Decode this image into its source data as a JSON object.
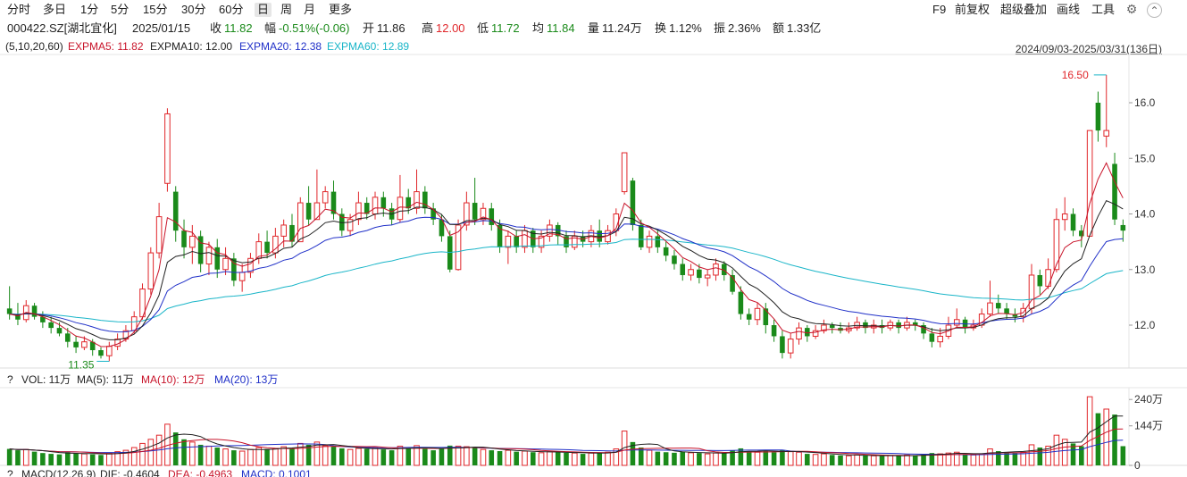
{
  "toolbar": {
    "periods": [
      "分时",
      "多日",
      "1分",
      "5分",
      "15分",
      "30分",
      "60分",
      "日",
      "周",
      "月",
      "更多"
    ],
    "active_period": "日",
    "right": [
      "F9",
      "前复权",
      "超级叠加",
      "画线",
      "工具"
    ]
  },
  "quote": {
    "code": "000422.SZ[湖北宜化]",
    "date": "2025/01/15",
    "close_label": "收",
    "close": "11.82",
    "change_label": "幅",
    "change": "-0.51%(-0.06)",
    "open_label": "开",
    "open": "11.86",
    "high_label": "高",
    "high": "12.00",
    "low_label": "低",
    "low": "11.72",
    "avg_label": "均",
    "avg": "11.84",
    "volume_label": "量",
    "volume": "11.24万",
    "turnover_label": "换",
    "turnover": "1.12%",
    "amplitude_label": "振",
    "amplitude": "2.36%",
    "amount_label": "额",
    "amount": "1.33亿"
  },
  "ma_legend": {
    "params": "(5,10,20,60)",
    "ma5": "EXPMA5: 11.82",
    "ma10": "EXPMA10: 12.00",
    "ma20": "EXPMA20: 12.38",
    "ma60": "EXPMA60: 12.89"
  },
  "range_label": "2024/09/03-2025/03/31(136日)",
  "vol_legend": {
    "help": "?",
    "vol": "VOL: 11万",
    "ma5": "MA(5): 11万",
    "ma10": "MA(10): 12万",
    "ma20": "MA(20): 13万"
  },
  "macd_legend": {
    "help": "?",
    "macd": "MACD(12,26,9)",
    "dif": "DIF: -0.4604",
    "dea": "DEA: -0.4963",
    "macd_val": "MACD: 0.1001"
  },
  "colors": {
    "up": "#e0262a",
    "down": "#1a8a1a",
    "ma5": "#c8142a",
    "ma10": "#222222",
    "ma20": "#2030c8",
    "ma60": "#19b5c8"
  },
  "chart_data": {
    "type": "candlestick",
    "price_axis": {
      "ticks": [
        "12.0",
        "13.0",
        "14.0",
        "15.0",
        "16.0"
      ],
      "min": 11.0,
      "max": 17.0
    },
    "volume_axis": {
      "ticks": [
        "0",
        "144万",
        "240万"
      ],
      "max": 270
    },
    "annotations": {
      "high": "16.50",
      "low": "11.35"
    },
    "candles": [
      [
        12.3,
        12.2,
        12.7,
        12.1,
        60
      ],
      [
        12.2,
        12.1,
        12.4,
        12.0,
        55
      ],
      [
        12.1,
        12.35,
        12.45,
        12.05,
        58
      ],
      [
        12.35,
        12.15,
        12.4,
        12.1,
        50
      ],
      [
        12.15,
        12.05,
        12.25,
        11.95,
        45
      ],
      [
        12.05,
        11.95,
        12.15,
        11.85,
        42
      ],
      [
        11.95,
        11.85,
        12.05,
        11.8,
        40
      ],
      [
        11.85,
        11.7,
        11.95,
        11.6,
        48
      ],
      [
        11.7,
        11.6,
        11.8,
        11.5,
        44
      ],
      [
        11.6,
        11.7,
        11.8,
        11.55,
        42
      ],
      [
        11.7,
        11.55,
        11.75,
        11.45,
        40
      ],
      [
        11.55,
        11.45,
        11.6,
        11.4,
        38
      ],
      [
        11.45,
        11.62,
        11.7,
        11.35,
        45
      ],
      [
        11.62,
        11.75,
        11.85,
        11.55,
        50
      ],
      [
        11.75,
        11.9,
        12.0,
        11.7,
        55
      ],
      [
        11.9,
        12.15,
        12.25,
        11.85,
        65
      ],
      [
        12.15,
        12.65,
        12.75,
        12.1,
        80
      ],
      [
        12.65,
        13.3,
        13.4,
        12.55,
        95
      ],
      [
        13.3,
        13.95,
        14.2,
        13.2,
        110
      ],
      [
        14.55,
        15.8,
        15.9,
        14.4,
        150
      ],
      [
        14.4,
        13.7,
        14.5,
        13.5,
        120
      ],
      [
        13.7,
        13.4,
        13.9,
        13.2,
        95
      ],
      [
        13.4,
        13.6,
        13.8,
        13.1,
        85
      ],
      [
        13.6,
        13.1,
        13.7,
        12.95,
        75
      ],
      [
        13.1,
        13.4,
        13.5,
        12.9,
        70
      ],
      [
        13.4,
        13.0,
        13.55,
        12.85,
        65
      ],
      [
        13.0,
        13.2,
        13.4,
        12.9,
        60
      ],
      [
        13.2,
        12.8,
        13.3,
        12.7,
        55
      ],
      [
        12.8,
        12.95,
        13.1,
        12.6,
        52
      ],
      [
        12.95,
        13.2,
        13.3,
        12.85,
        58
      ],
      [
        13.2,
        13.5,
        13.65,
        13.1,
        65
      ],
      [
        13.5,
        13.3,
        13.7,
        13.2,
        60
      ],
      [
        13.3,
        13.6,
        13.75,
        13.2,
        62
      ],
      [
        13.6,
        13.8,
        13.9,
        13.4,
        68
      ],
      [
        13.8,
        13.5,
        14.0,
        13.4,
        62
      ],
      [
        13.5,
        14.2,
        14.3,
        13.5,
        80
      ],
      [
        14.2,
        13.9,
        14.5,
        13.8,
        75
      ],
      [
        13.9,
        14.2,
        14.8,
        13.9,
        85
      ],
      [
        14.2,
        14.4,
        14.5,
        14.1,
        72
      ],
      [
        14.4,
        14.0,
        14.6,
        13.9,
        68
      ],
      [
        14.0,
        13.7,
        14.1,
        13.6,
        62
      ],
      [
        13.7,
        13.9,
        14.0,
        13.6,
        58
      ],
      [
        13.9,
        14.2,
        14.4,
        13.8,
        62
      ],
      [
        14.2,
        14.0,
        14.3,
        13.9,
        60
      ],
      [
        14.0,
        14.3,
        14.4,
        13.9,
        64
      ],
      [
        14.3,
        14.1,
        14.4,
        13.95,
        58
      ],
      [
        14.1,
        13.9,
        14.2,
        13.8,
        55
      ],
      [
        13.9,
        14.3,
        14.7,
        13.85,
        70
      ],
      [
        14.3,
        14.1,
        14.45,
        14.0,
        62
      ],
      [
        14.1,
        14.4,
        14.8,
        14.0,
        72
      ],
      [
        14.4,
        14.1,
        14.5,
        14.0,
        60
      ],
      [
        14.1,
        13.9,
        14.2,
        13.8,
        55
      ],
      [
        13.9,
        13.6,
        14.0,
        13.5,
        60
      ],
      [
        13.6,
        13.0,
        13.7,
        12.95,
        72
      ],
      [
        13.0,
        13.8,
        13.9,
        12.98,
        70
      ],
      [
        13.8,
        14.2,
        14.4,
        13.7,
        68
      ],
      [
        14.2,
        13.9,
        14.65,
        13.8,
        64
      ],
      [
        13.9,
        14.1,
        14.2,
        13.8,
        58
      ],
      [
        14.1,
        13.8,
        14.2,
        13.7,
        55
      ],
      [
        13.8,
        13.4,
        13.9,
        13.3,
        52
      ],
      [
        13.4,
        13.6,
        13.7,
        13.1,
        55
      ],
      [
        13.6,
        13.4,
        13.7,
        13.3,
        50
      ],
      [
        13.4,
        13.7,
        13.8,
        13.3,
        52
      ],
      [
        13.7,
        13.4,
        13.75,
        13.3,
        48
      ],
      [
        13.4,
        13.6,
        13.7,
        13.3,
        46
      ],
      [
        13.6,
        13.8,
        13.9,
        13.5,
        50
      ],
      [
        13.8,
        13.6,
        13.85,
        13.45,
        48
      ],
      [
        13.6,
        13.4,
        13.7,
        13.3,
        46
      ],
      [
        13.4,
        13.6,
        13.7,
        13.35,
        45
      ],
      [
        13.6,
        13.5,
        13.7,
        13.4,
        42
      ],
      [
        13.5,
        13.7,
        13.8,
        13.4,
        45
      ],
      [
        13.7,
        13.5,
        13.9,
        13.4,
        46
      ],
      [
        13.5,
        13.7,
        13.8,
        13.45,
        48
      ],
      [
        13.7,
        14.0,
        14.1,
        13.6,
        60
      ],
      [
        14.4,
        15.1,
        15.1,
        14.35,
        125
      ],
      [
        14.6,
        13.8,
        14.65,
        13.7,
        85
      ],
      [
        13.8,
        13.4,
        13.9,
        13.35,
        65
      ],
      [
        13.4,
        13.6,
        13.7,
        13.3,
        55
      ],
      [
        13.6,
        13.4,
        13.7,
        13.3,
        50
      ],
      [
        13.4,
        13.25,
        13.5,
        13.15,
        48
      ],
      [
        13.25,
        13.1,
        13.35,
        13.0,
        46
      ],
      [
        13.1,
        12.9,
        13.2,
        12.8,
        50
      ],
      [
        12.9,
        13.0,
        13.1,
        12.8,
        46
      ],
      [
        13.0,
        12.85,
        13.1,
        12.75,
        45
      ],
      [
        12.85,
        12.9,
        13.0,
        12.7,
        42
      ],
      [
        12.9,
        13.1,
        13.2,
        12.8,
        45
      ],
      [
        13.1,
        12.9,
        13.15,
        12.8,
        44
      ],
      [
        12.9,
        12.6,
        13.0,
        12.55,
        55
      ],
      [
        12.6,
        12.2,
        12.7,
        12.1,
        62
      ],
      [
        12.2,
        12.1,
        12.3,
        12.0,
        50
      ],
      [
        12.1,
        12.3,
        12.4,
        12.0,
        48
      ],
      [
        12.3,
        12.0,
        12.4,
        11.85,
        52
      ],
      [
        12.0,
        11.8,
        12.1,
        11.7,
        48
      ],
      [
        11.8,
        11.5,
        11.9,
        11.4,
        55
      ],
      [
        11.5,
        11.75,
        11.85,
        11.4,
        50
      ],
      [
        11.75,
        11.95,
        12.05,
        11.65,
        48
      ],
      [
        11.95,
        11.8,
        12.0,
        11.7,
        42
      ],
      [
        11.8,
        11.9,
        12.0,
        11.75,
        40
      ],
      [
        11.9,
        12.0,
        12.1,
        11.85,
        42
      ],
      [
        12.0,
        11.95,
        12.05,
        11.85,
        38
      ],
      [
        11.95,
        11.9,
        12.05,
        11.85,
        36
      ],
      [
        11.9,
        11.95,
        12.05,
        11.85,
        35
      ],
      [
        11.95,
        12.05,
        12.15,
        11.9,
        38
      ],
      [
        12.05,
        11.95,
        12.1,
        11.85,
        36
      ],
      [
        11.95,
        12.0,
        12.1,
        11.85,
        35
      ],
      [
        12.0,
        11.95,
        12.1,
        11.85,
        34
      ],
      [
        11.95,
        12.05,
        12.1,
        11.9,
        36
      ],
      [
        12.05,
        11.95,
        12.1,
        11.85,
        35
      ],
      [
        11.95,
        12.05,
        12.15,
        11.9,
        38
      ],
      [
        12.05,
        12.0,
        12.1,
        11.9,
        36
      ],
      [
        12.0,
        11.85,
        12.05,
        11.75,
        40
      ],
      [
        11.85,
        11.7,
        11.95,
        11.6,
        45
      ],
      [
        11.7,
        11.8,
        11.95,
        11.6,
        42
      ],
      [
        11.8,
        12.0,
        12.15,
        11.75,
        45
      ],
      [
        12.0,
        12.1,
        12.3,
        11.95,
        48
      ],
      [
        12.1,
        11.95,
        12.15,
        11.85,
        40
      ],
      [
        11.95,
        12.0,
        12.1,
        11.9,
        38
      ],
      [
        12.0,
        12.2,
        12.3,
        11.95,
        42
      ],
      [
        12.2,
        12.4,
        12.8,
        12.15,
        60
      ],
      [
        12.4,
        12.3,
        12.55,
        12.2,
        52
      ],
      [
        12.3,
        12.2,
        12.4,
        12.1,
        48
      ],
      [
        12.2,
        12.15,
        12.3,
        12.05,
        45
      ],
      [
        12.15,
        12.3,
        12.4,
        12.05,
        48
      ],
      [
        12.3,
        12.9,
        13.1,
        12.2,
        75
      ],
      [
        12.9,
        12.7,
        13.0,
        12.55,
        65
      ],
      [
        12.7,
        13.0,
        13.2,
        12.65,
        70
      ],
      [
        13.0,
        13.9,
        14.1,
        12.95,
        110
      ],
      [
        13.9,
        14.0,
        14.3,
        13.7,
        95
      ],
      [
        14.0,
        13.7,
        14.1,
        13.6,
        80
      ],
      [
        13.7,
        13.6,
        13.8,
        13.4,
        70
      ],
      [
        13.6,
        15.5,
        15.5,
        13.6,
        250
      ],
      [
        16.0,
        15.5,
        16.2,
        15.3,
        190
      ],
      [
        15.4,
        15.5,
        16.5,
        15.2,
        205
      ],
      [
        14.9,
        13.9,
        15.1,
        13.8,
        185
      ],
      [
        13.8,
        13.7,
        13.9,
        13.5,
        70
      ]
    ],
    "ma_series": {
      "ema5": "EXPMA5",
      "ema10": "EXPMA10",
      "ema20": "EXPMA20",
      "ema60": "EXPMA60"
    }
  }
}
